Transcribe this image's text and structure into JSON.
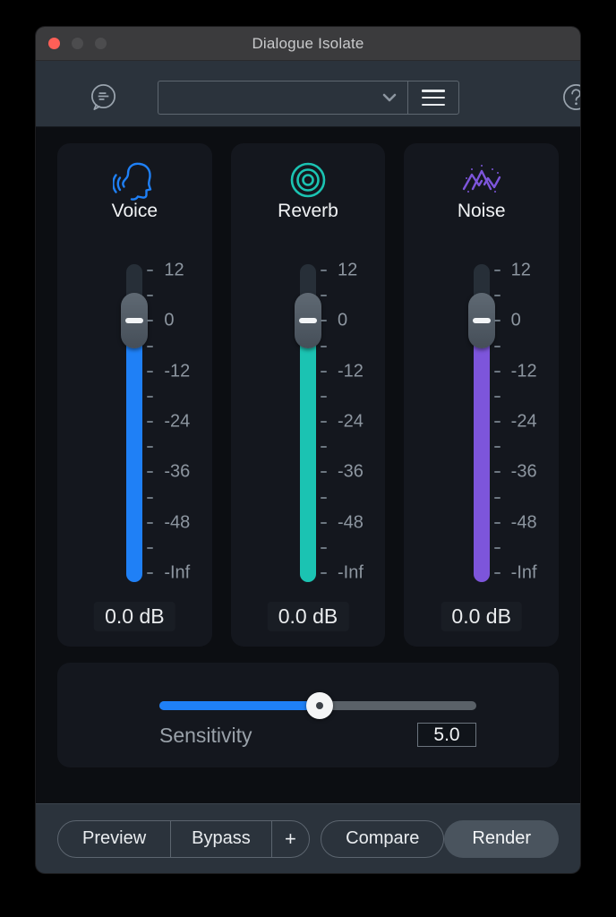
{
  "window": {
    "title": "Dialogue Isolate"
  },
  "titlebar": {
    "traffic_lights": [
      "close-red",
      "minimize-dim",
      "zoom-dim"
    ]
  },
  "toolbar": {
    "bubble_icon": "preset-comment-icon",
    "preset_value": "",
    "chevron_icon": "chevron-down-icon",
    "menu_icon": "hamburger-menu-icon",
    "help_icon": "help-question-icon"
  },
  "channels": [
    {
      "label": "Voice",
      "value": "0.0 dB",
      "color": "#1f80f6",
      "icon": "voice-head-icon"
    },
    {
      "label": "Reverb",
      "value": "0.0 dB",
      "color": "#1bc3b2",
      "icon": "reverb-rings-icon"
    },
    {
      "label": "Noise",
      "value": "0.0 dB",
      "color": "#7d55db",
      "icon": "noise-wave-icon"
    }
  ],
  "fader_scale": {
    "major_labels": [
      "12",
      "0",
      "-12",
      "-24",
      "-36",
      "-48",
      "-Inf"
    ]
  },
  "sensitivity": {
    "label": "Sensitivity",
    "value": "5.0",
    "fraction": 0.505
  },
  "footer": {
    "preview": "Preview",
    "bypass": "Bypass",
    "plus": "+",
    "compare": "Compare",
    "render": "Render"
  }
}
